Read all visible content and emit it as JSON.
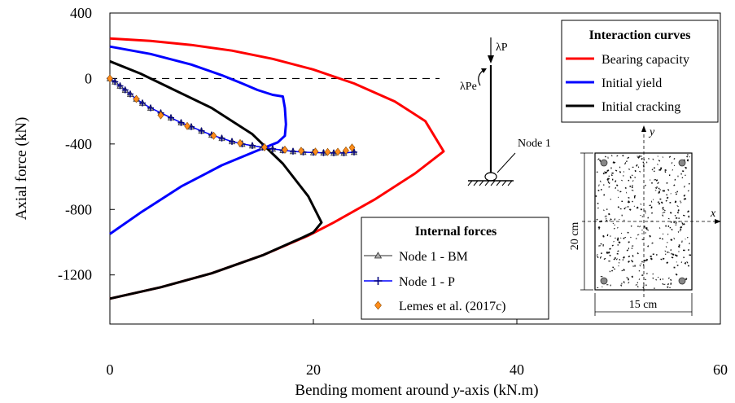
{
  "chart_data": {
    "type": "line",
    "xlabel_prefix": "Bending moment around ",
    "xlabel_var": "y",
    "xlabel_suffix": "-axis (kN.m)",
    "ylabel": "Axial force (kN)",
    "xlim": [
      0,
      60
    ],
    "ylim": [
      -1500,
      400
    ],
    "xticks": [
      0,
      20,
      40,
      60
    ],
    "yticks": [
      400,
      0,
      -400,
      -800,
      -1200
    ],
    "reference_line": {
      "y": 0,
      "style": "dashed"
    },
    "legend_curves": {
      "title": "Interaction curves",
      "placement": "top-right",
      "entries": [
        "Bearing capacity",
        "Initial yield",
        "Initial cracking"
      ]
    },
    "legend_forces": {
      "title": "Internal forces",
      "placement": "bottom-center",
      "entries": [
        "Node 1 - BM",
        "Node 1 - P",
        "Lemes et al. (2017c)"
      ]
    },
    "curves": [
      {
        "name": "Bearing capacity",
        "color": "#ff0000",
        "points": [
          [
            0,
            245
          ],
          [
            4,
            230
          ],
          [
            8,
            205
          ],
          [
            12,
            170
          ],
          [
            16,
            120
          ],
          [
            20,
            55
          ],
          [
            24,
            -30
          ],
          [
            28,
            -140
          ],
          [
            31,
            -260
          ],
          [
            32.8,
            -445
          ],
          [
            30,
            -580
          ],
          [
            26,
            -740
          ],
          [
            22,
            -880
          ],
          [
            19.5,
            -960
          ],
          [
            15,
            -1080
          ],
          [
            10,
            -1190
          ],
          [
            5,
            -1275
          ],
          [
            0,
            -1345
          ]
        ]
      },
      {
        "name": "Initial yield",
        "color": "#0000ff",
        "points": [
          [
            0,
            195
          ],
          [
            4,
            150
          ],
          [
            8,
            85
          ],
          [
            11,
            20
          ],
          [
            13,
            -30
          ],
          [
            14.5,
            -70
          ],
          [
            16,
            -100
          ],
          [
            17,
            -110
          ],
          [
            17.2,
            -180
          ],
          [
            17.3,
            -280
          ],
          [
            17.2,
            -350
          ],
          [
            16.5,
            -390
          ],
          [
            14.5,
            -440
          ],
          [
            11,
            -530
          ],
          [
            7,
            -660
          ],
          [
            3,
            -820
          ],
          [
            0,
            -950
          ]
        ]
      },
      {
        "name": "Initial cracking",
        "color": "#000000",
        "points": [
          [
            0,
            105
          ],
          [
            3,
            30
          ],
          [
            6,
            -60
          ],
          [
            10,
            -180
          ],
          [
            14,
            -340
          ],
          [
            17,
            -520
          ],
          [
            19.5,
            -720
          ],
          [
            20.8,
            -880
          ],
          [
            20,
            -940
          ],
          [
            19,
            -970
          ],
          [
            15,
            -1080
          ],
          [
            10,
            -1190
          ],
          [
            5,
            -1275
          ],
          [
            0,
            -1345
          ]
        ]
      }
    ],
    "series": [
      {
        "name": "Node 1 - BM",
        "color": "#555555",
        "marker": "triangle",
        "points": [
          [
            0,
            0
          ],
          [
            0.5,
            -20
          ],
          [
            1,
            -45
          ],
          [
            1.5,
            -70
          ],
          [
            2,
            -95
          ],
          [
            2.6,
            -125
          ],
          [
            3.2,
            -150
          ],
          [
            4,
            -180
          ],
          [
            5,
            -210
          ],
          [
            6,
            -240
          ],
          [
            7,
            -270
          ],
          [
            8,
            -295
          ],
          [
            9,
            -320
          ],
          [
            10,
            -345
          ],
          [
            11,
            -365
          ],
          [
            12,
            -385
          ],
          [
            13,
            -400
          ],
          [
            14,
            -410
          ],
          [
            15,
            -420
          ],
          [
            16,
            -430
          ],
          [
            17,
            -438
          ],
          [
            18,
            -445
          ],
          [
            19,
            -450
          ],
          [
            20,
            -452
          ],
          [
            21,
            -454
          ],
          [
            22,
            -455
          ],
          [
            23,
            -455
          ],
          [
            24,
            -450
          ]
        ]
      },
      {
        "name": "Node 1 - P",
        "color": "#0000ff",
        "marker": "plus",
        "points": [
          [
            0,
            0
          ],
          [
            0.5,
            -20
          ],
          [
            1,
            -45
          ],
          [
            1.5,
            -70
          ],
          [
            2,
            -95
          ],
          [
            2.6,
            -125
          ],
          [
            3.2,
            -150
          ],
          [
            4,
            -180
          ],
          [
            5,
            -210
          ],
          [
            6,
            -240
          ],
          [
            7,
            -270
          ],
          [
            8,
            -295
          ],
          [
            9,
            -320
          ],
          [
            10,
            -345
          ],
          [
            11,
            -365
          ],
          [
            12,
            -385
          ],
          [
            13,
            -400
          ],
          [
            14,
            -410
          ],
          [
            15,
            -420
          ],
          [
            16,
            -430
          ],
          [
            17,
            -438
          ],
          [
            18,
            -445
          ],
          [
            19,
            -450
          ],
          [
            20,
            -452
          ],
          [
            21,
            -454
          ],
          [
            22,
            -455
          ],
          [
            23,
            -455
          ],
          [
            24,
            -450
          ]
        ]
      },
      {
        "name": "Lemes et al. (2017c)",
        "color": "#ff8c1a",
        "marker": "diamond",
        "points": [
          [
            0,
            0
          ],
          [
            2.6,
            -125
          ],
          [
            5,
            -225
          ],
          [
            7.6,
            -290
          ],
          [
            10.2,
            -350
          ],
          [
            12.8,
            -395
          ],
          [
            15.2,
            -420
          ],
          [
            17.2,
            -435
          ],
          [
            18.8,
            -442
          ],
          [
            20.2,
            -447
          ],
          [
            21.4,
            -449
          ],
          [
            22.4,
            -448
          ],
          [
            23.2,
            -440
          ],
          [
            23.8,
            -422
          ]
        ]
      }
    ]
  },
  "inset_column": {
    "load_label_var": "λP",
    "moment_label_var": "λPe",
    "node_label": "Node 1"
  },
  "inset_section": {
    "x_axis_label": "x",
    "y_axis_label": "y",
    "height_label": "20 cm",
    "width_label": "15 cm"
  }
}
